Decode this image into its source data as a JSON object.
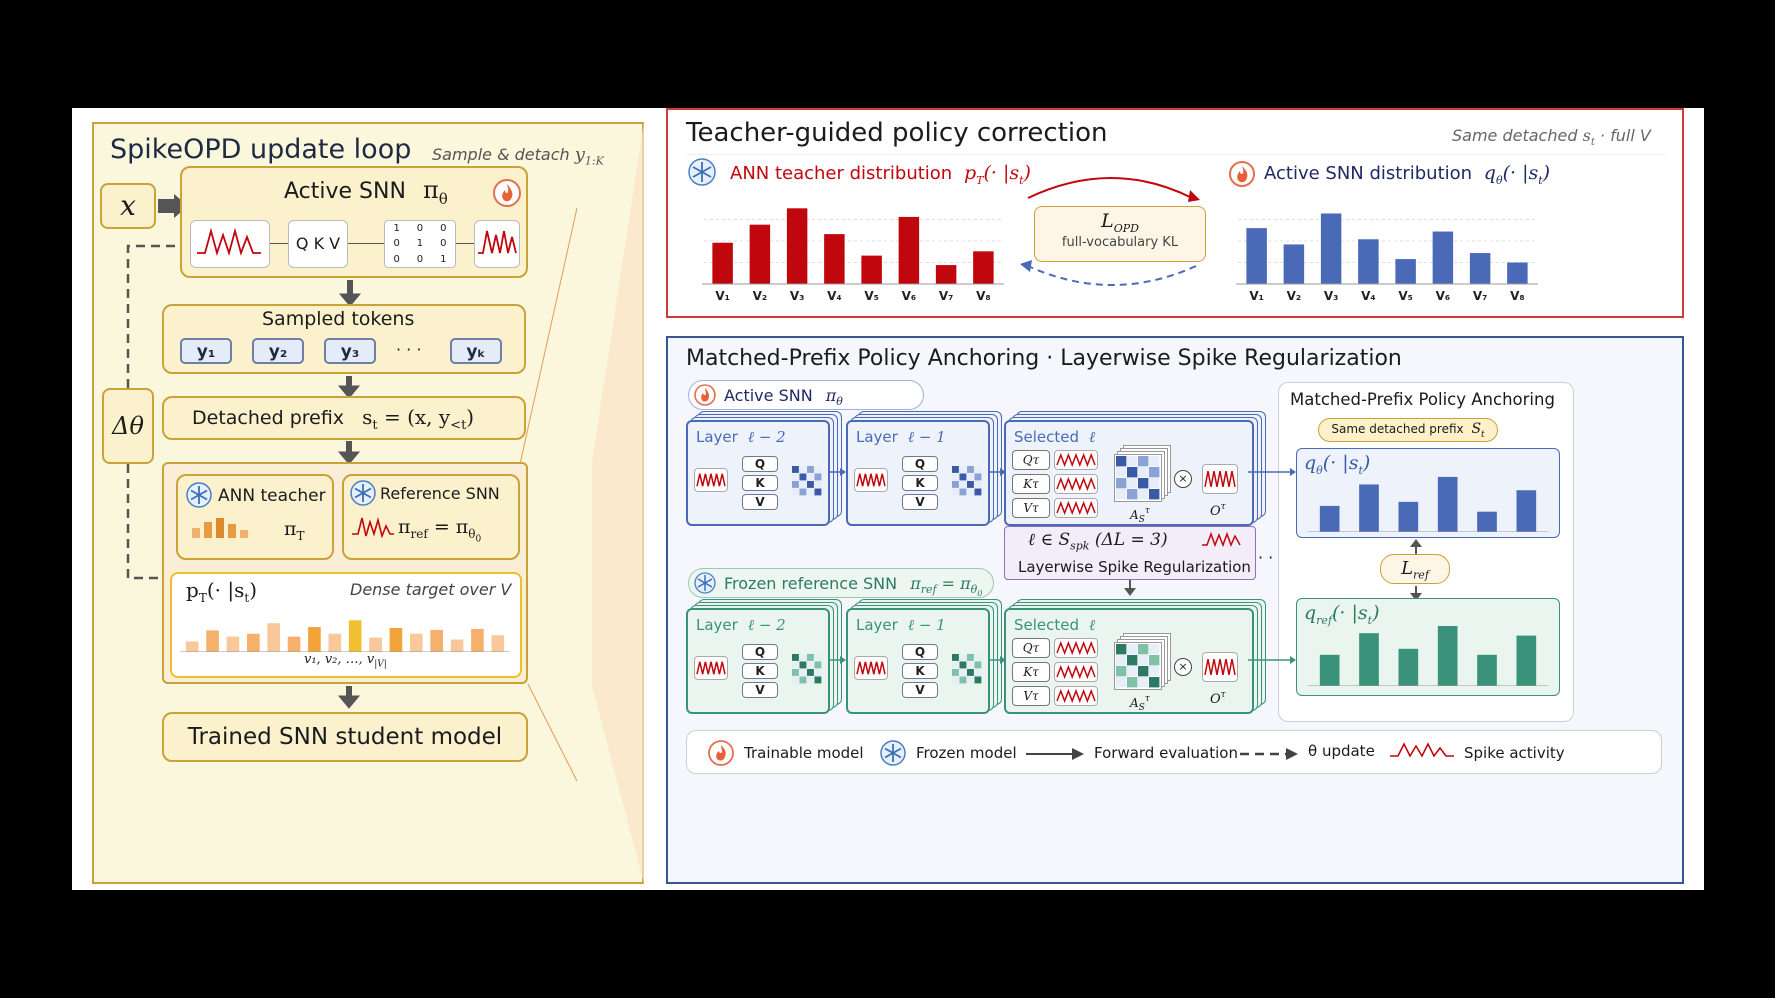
{
  "left_panel": {
    "title": "SpikeOPD update loop",
    "subtitle_text": "Sample & detach",
    "subtitle_math": "y",
    "subtitle_sub": "1:K",
    "input_x": "x",
    "delta_theta": "Δθ",
    "active_snn": {
      "label": "Active SNN",
      "math": "π",
      "sub": "θ",
      "qkv": "Q K V",
      "matrix": [
        "1",
        "0",
        "0",
        "0",
        "1",
        "0",
        "0",
        "0",
        "1"
      ]
    },
    "sampled": {
      "title": "Sampled tokens",
      "tokens": [
        "y₁",
        "y₂",
        "y₃",
        "yₖ"
      ],
      "ellipsis": "· · ·"
    },
    "detached": {
      "label": "Detached prefix",
      "math": "s",
      "math_sub": "t",
      "math_rest": " = (x, y",
      "math_sub2": "<t",
      "math_end": ")"
    },
    "ann_teacher": {
      "label": "ANN teacher",
      "math": "π",
      "sub": "T"
    },
    "ref_snn": {
      "label": "Reference SNN",
      "math": "π",
      "sub": "ref",
      "eq": " = π",
      "eq_sub": "θ",
      "eq_sub2": "0"
    },
    "target": {
      "math": "p",
      "math_sub": "T",
      "math_rest": "(· |s",
      "math_sub2": "t",
      "math_end": ")",
      "note": "Dense target over V",
      "axis": "v₁, v₂, …, v",
      "axis_sub": "|V|"
    },
    "trained": "Trained SNN student model"
  },
  "top_panel": {
    "title": "Teacher-guided policy correction",
    "note_pre": "Same detached",
    "note_math": "s",
    "note_sub": "t",
    "note_post": " · full V",
    "teacher_label": "ANN teacher distribution",
    "teacher_math": "p",
    "teacher_sub": "T",
    "teacher_rest": "(· |s",
    "teacher_sub2": "t",
    "teacher_end": ")",
    "student_label": "Active SNN distribution",
    "student_math": "q",
    "student_sub": "θ",
    "student_rest": "(· |s",
    "student_sub2": "t",
    "student_end": ")",
    "loss_math": "L",
    "loss_sub": "OPD",
    "loss_note": "full-vocabulary KL",
    "colors": {
      "teacher": "#c0070d",
      "student": "#4a6ab8"
    }
  },
  "chart_data": [
    {
      "type": "bar",
      "name": "ANN teacher distribution",
      "categories": [
        "V₁",
        "V₂",
        "V₃",
        "V₄",
        "V₅",
        "V₆",
        "V₇",
        "V₈"
      ],
      "values": [
        0.48,
        0.69,
        0.88,
        0.58,
        0.33,
        0.78,
        0.22,
        0.38
      ]
    },
    {
      "type": "bar",
      "name": "Active SNN distribution",
      "categories": [
        "V₁",
        "V₂",
        "V₃",
        "V₄",
        "V₅",
        "V₆",
        "V₇",
        "V₈"
      ],
      "values": [
        0.65,
        0.46,
        0.82,
        0.52,
        0.29,
        0.61,
        0.36,
        0.25
      ]
    },
    {
      "type": "bar",
      "name": "Dense target over V",
      "values": [
        0.22,
        0.45,
        0.32,
        0.38,
        0.6,
        0.32,
        0.52,
        0.38,
        0.66,
        0.3,
        0.5,
        0.38,
        0.46,
        0.26,
        0.48,
        0.35
      ]
    },
    {
      "type": "bar",
      "name": "q_θ(·|s_t)",
      "values": [
        0.45,
        0.82,
        0.52,
        0.95,
        0.35,
        0.72
      ]
    },
    {
      "type": "bar",
      "name": "q_ref(·|s_t)",
      "values": [
        0.52,
        0.88,
        0.62,
        1.0,
        0.52,
        0.84
      ]
    }
  ],
  "bottom_panel": {
    "title": "Matched-Prefix Policy Anchoring · Layerwise Spike Regularization",
    "active_label": "Active SNN",
    "active_math": "π",
    "active_sub": "θ",
    "frozen_label": "Frozen reference SNN",
    "frozen_math": "π",
    "frozen_sub": "ref",
    "frozen_eq": " = π",
    "frozen_eq_sub": "θ",
    "frozen_eq_sub2": "0",
    "layer_word": "Layer",
    "layer_m2": "ℓ − 2",
    "layer_m1": "ℓ − 1",
    "selected_word": "Selected",
    "selected_ell": "ℓ",
    "q": "Q",
    "k": "K",
    "v": "V",
    "qt": "Qτ",
    "kt": "Kτ",
    "vt": "Vτ",
    "as_math": "A",
    "as_sub": "S",
    "as_sup": "τ",
    "o_math": "O",
    "o_sup": "τ",
    "times": "×",
    "spk_set": "ℓ ∈ S",
    "spk_sub": "spk",
    "spk_rest": " (ΔL = 3)",
    "spk_label": "Layerwise Spike Regularization",
    "ellipsis": "· · ·",
    "anchor_title": "Matched-Prefix Policy Anchoring",
    "anchor_tag": "Same detached prefix",
    "anchor_tag_math": "S",
    "anchor_tag_sub": "t",
    "q_theta_math": "q",
    "q_theta_sub": "θ",
    "q_theta_rest": "(· |s",
    "q_theta_sub2": "t",
    "q_theta_end": ")",
    "q_ref_math": "q",
    "q_ref_sub": "ref",
    "q_ref_rest": "(· |s",
    "q_ref_sub2": "t",
    "q_ref_end": ")",
    "lref_math": "L",
    "lref_sub": "ref",
    "colors": {
      "active": "#4a6ab8",
      "frozen": "#3b927a"
    }
  },
  "legend": {
    "trainable": "Trainable model",
    "frozen": "Frozen model",
    "forward": "Forward evaluation",
    "update": "θ update",
    "spike": "Spike activity"
  }
}
